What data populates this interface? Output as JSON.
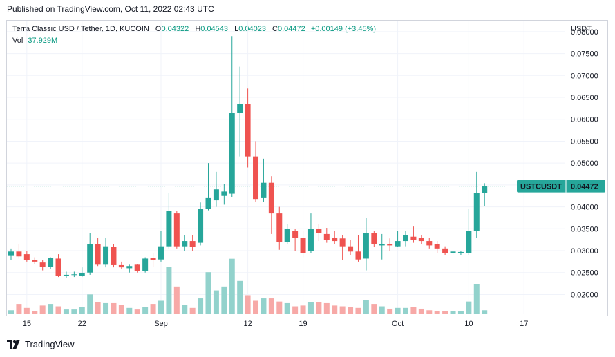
{
  "header": {
    "published": "Published on TradingView.com, Oct 11, 2022 02:43 UTC"
  },
  "legend": {
    "title": "Terra Classic USD / Tether, 1D, KUCOIN",
    "o_label": "O",
    "o_value": "0.04322",
    "h_label": "H",
    "h_value": "0.04543",
    "l_label": "L",
    "l_value": "0.04023",
    "c_label": "C",
    "c_value": "0.04472",
    "change": "+0.00149 (+3.45%)",
    "vol_label": "Vol",
    "vol_value": "37.929M"
  },
  "currency": "USDT",
  "price_tag": {
    "symbol": "USTCUSDT",
    "value": "0.04472"
  },
  "brand": "TradingView",
  "colors": {
    "up": "#26a69a",
    "down": "#ef5350",
    "up_vol": "#92d2cc",
    "down_vol": "#f7a9a7",
    "tag": "#26a69a"
  },
  "chart_data": {
    "type": "candlestick",
    "ylim": [
      0.0155,
      0.0825
    ],
    "yticks": [
      "0.08000",
      "0.07500",
      "0.07000",
      "0.06500",
      "0.06000",
      "0.05500",
      "0.05000",
      "0.04500",
      "0.04000",
      "0.03500",
      "0.03000",
      "0.02500",
      "0.02000"
    ],
    "xticks": [
      {
        "label": "15",
        "index": 2
      },
      {
        "label": "22",
        "index": 9
      },
      {
        "label": "Sep",
        "index": 19
      },
      {
        "label": "12",
        "index": 30
      },
      {
        "label": "19",
        "index": 37
      },
      {
        "label": "Oct",
        "index": 49
      },
      {
        "label": "10",
        "index": 58
      },
      {
        "label": "17",
        "index": 65
      }
    ],
    "last_price": 0.04472,
    "candles": [
      {
        "o": 0.0288,
        "h": 0.0305,
        "l": 0.0278,
        "c": 0.0298
      },
      {
        "o": 0.0298,
        "h": 0.0315,
        "l": 0.0282,
        "c": 0.0287
      },
      {
        "o": 0.0292,
        "h": 0.03,
        "l": 0.0275,
        "c": 0.0278
      },
      {
        "o": 0.0278,
        "h": 0.0285,
        "l": 0.027,
        "c": 0.0275
      },
      {
        "o": 0.0273,
        "h": 0.0278,
        "l": 0.0255,
        "c": 0.0263
      },
      {
        "o": 0.0263,
        "h": 0.0285,
        "l": 0.0258,
        "c": 0.0283
      },
      {
        "o": 0.0282,
        "h": 0.0292,
        "l": 0.024,
        "c": 0.0243
      },
      {
        "o": 0.0243,
        "h": 0.0252,
        "l": 0.0238,
        "c": 0.0245
      },
      {
        "o": 0.0245,
        "h": 0.0252,
        "l": 0.024,
        "c": 0.0246
      },
      {
        "o": 0.0243,
        "h": 0.0262,
        "l": 0.024,
        "c": 0.0248
      },
      {
        "o": 0.025,
        "h": 0.034,
        "l": 0.0245,
        "c": 0.0315
      },
      {
        "o": 0.0315,
        "h": 0.033,
        "l": 0.0265,
        "c": 0.0268
      },
      {
        "o": 0.0268,
        "h": 0.033,
        "l": 0.0262,
        "c": 0.031
      },
      {
        "o": 0.0308,
        "h": 0.0315,
        "l": 0.0262,
        "c": 0.0267
      },
      {
        "o": 0.0267,
        "h": 0.0275,
        "l": 0.0258,
        "c": 0.0262
      },
      {
        "o": 0.026,
        "h": 0.0268,
        "l": 0.025,
        "c": 0.0265
      },
      {
        "o": 0.0268,
        "h": 0.027,
        "l": 0.025,
        "c": 0.0253
      },
      {
        "o": 0.0253,
        "h": 0.0285,
        "l": 0.025,
        "c": 0.0282
      },
      {
        "o": 0.0283,
        "h": 0.0295,
        "l": 0.0262,
        "c": 0.0278
      },
      {
        "o": 0.028,
        "h": 0.0345,
        "l": 0.0275,
        "c": 0.031
      },
      {
        "o": 0.031,
        "h": 0.0432,
        "l": 0.0305,
        "c": 0.039
      },
      {
        "o": 0.0385,
        "h": 0.039,
        "l": 0.0305,
        "c": 0.031
      },
      {
        "o": 0.031,
        "h": 0.0335,
        "l": 0.03,
        "c": 0.0322
      },
      {
        "o": 0.0322,
        "h": 0.0335,
        "l": 0.03,
        "c": 0.0308
      },
      {
        "o": 0.0318,
        "h": 0.041,
        "l": 0.0312,
        "c": 0.0395
      },
      {
        "o": 0.0395,
        "h": 0.05,
        "l": 0.0392,
        "c": 0.042
      },
      {
        "o": 0.0415,
        "h": 0.048,
        "l": 0.04,
        "c": 0.044
      },
      {
        "o": 0.0425,
        "h": 0.0452,
        "l": 0.0405,
        "c": 0.0435
      },
      {
        "o": 0.043,
        "h": 0.079,
        "l": 0.0422,
        "c": 0.0615
      },
      {
        "o": 0.0615,
        "h": 0.072,
        "l": 0.0515,
        "c": 0.0635
      },
      {
        "o": 0.0635,
        "h": 0.067,
        "l": 0.049,
        "c": 0.0515
      },
      {
        "o": 0.0515,
        "h": 0.055,
        "l": 0.0412,
        "c": 0.0418
      },
      {
        "o": 0.042,
        "h": 0.051,
        "l": 0.0412,
        "c": 0.0455
      },
      {
        "o": 0.0455,
        "h": 0.047,
        "l": 0.0338,
        "c": 0.0385
      },
      {
        "o": 0.0385,
        "h": 0.04,
        "l": 0.0302,
        "c": 0.032
      },
      {
        "o": 0.032,
        "h": 0.036,
        "l": 0.0315,
        "c": 0.035
      },
      {
        "o": 0.0345,
        "h": 0.035,
        "l": 0.03,
        "c": 0.033
      },
      {
        "o": 0.033,
        "h": 0.0345,
        "l": 0.0285,
        "c": 0.0295
      },
      {
        "o": 0.03,
        "h": 0.0385,
        "l": 0.0295,
        "c": 0.035
      },
      {
        "o": 0.035,
        "h": 0.036,
        "l": 0.0322,
        "c": 0.034
      },
      {
        "o": 0.0338,
        "h": 0.0352,
        "l": 0.0318,
        "c": 0.0325
      },
      {
        "o": 0.033,
        "h": 0.0345,
        "l": 0.0315,
        "c": 0.0322
      },
      {
        "o": 0.0328,
        "h": 0.0335,
        "l": 0.0278,
        "c": 0.031
      },
      {
        "o": 0.031,
        "h": 0.0325,
        "l": 0.029,
        "c": 0.0298
      },
      {
        "o": 0.0298,
        "h": 0.0335,
        "l": 0.0275,
        "c": 0.028
      },
      {
        "o": 0.0282,
        "h": 0.0375,
        "l": 0.0255,
        "c": 0.034
      },
      {
        "o": 0.034,
        "h": 0.0345,
        "l": 0.0308,
        "c": 0.0315
      },
      {
        "o": 0.0312,
        "h": 0.0338,
        "l": 0.028,
        "c": 0.0315
      },
      {
        "o": 0.0315,
        "h": 0.0328,
        "l": 0.03,
        "c": 0.0312
      },
      {
        "o": 0.031,
        "h": 0.0345,
        "l": 0.0308,
        "c": 0.0322
      },
      {
        "o": 0.0322,
        "h": 0.0345,
        "l": 0.031,
        "c": 0.0335
      },
      {
        "o": 0.0332,
        "h": 0.0355,
        "l": 0.0318,
        "c": 0.0325
      },
      {
        "o": 0.033,
        "h": 0.0335,
        "l": 0.0315,
        "c": 0.0322
      },
      {
        "o": 0.0322,
        "h": 0.033,
        "l": 0.0305,
        "c": 0.0312
      },
      {
        "o": 0.0315,
        "h": 0.0322,
        "l": 0.0295,
        "c": 0.0305
      },
      {
        "o": 0.0305,
        "h": 0.031,
        "l": 0.029,
        "c": 0.0295
      },
      {
        "o": 0.0295,
        "h": 0.03,
        "l": 0.029,
        "c": 0.0298
      },
      {
        "o": 0.0295,
        "h": 0.03,
        "l": 0.029,
        "c": 0.0297
      },
      {
        "o": 0.0295,
        "h": 0.0395,
        "l": 0.029,
        "c": 0.0345
      },
      {
        "o": 0.0345,
        "h": 0.048,
        "l": 0.033,
        "c": 0.0432
      },
      {
        "o": 0.0432,
        "h": 0.0454,
        "l": 0.0402,
        "c": 0.0447
      }
    ],
    "volume_max_fraction": [
      0.05,
      0.13,
      0.08,
      0.04,
      0.11,
      0.13,
      0.1,
      0.06,
      0.06,
      0.09,
      0.25,
      0.15,
      0.14,
      0.14,
      0.12,
      0.08,
      0.06,
      0.09,
      0.13,
      0.17,
      0.6,
      0.35,
      0.12,
      0.08,
      0.2,
      0.53,
      0.3,
      0.35,
      0.7,
      0.42,
      0.24,
      0.17,
      0.2,
      0.2,
      0.16,
      0.14,
      0.1,
      0.11,
      0.15,
      0.15,
      0.14,
      0.11,
      0.1,
      0.09,
      0.08,
      0.18,
      0.13,
      0.1,
      0.07,
      0.08,
      0.08,
      0.09,
      0.07,
      0.05,
      0.04,
      0.04,
      0.04,
      0.04,
      0.16,
      0.38,
      0.05
    ]
  }
}
